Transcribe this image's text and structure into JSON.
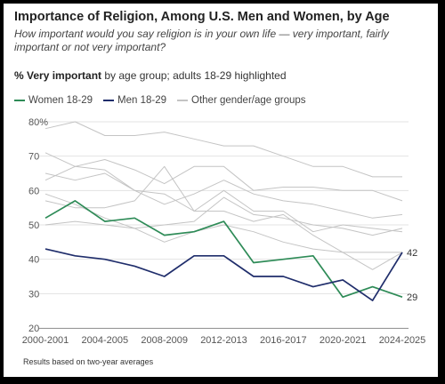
{
  "title": "Importance of Religion, Among U.S. Men and Women, by Age",
  "subtitle": "How important would you say religion is in your own life — very important, fairly important or not very important?",
  "measure": {
    "bold": "% Very important",
    "rest": " by age group; adults 18-29 highlighted"
  },
  "legend": [
    {
      "label": "Women 18-29",
      "color": "#2e8b57"
    },
    {
      "label": "Men 18-29",
      "color": "#1f2d6b"
    },
    {
      "label": "Other gender/age groups",
      "color": "#c4c4c4"
    }
  ],
  "footnote": "Results based on two-year averages",
  "chart_data": {
    "type": "line",
    "x": [
      "2000-2001",
      "2002-2003",
      "2004-2005",
      "2006-2007",
      "2008-2009",
      "2010-2011",
      "2012-2013",
      "2014-2015",
      "2016-2017",
      "2018-2019",
      "2020-2021",
      "2022-2023",
      "2024-2025"
    ],
    "xticks": [
      "2000-2001",
      "2004-2005",
      "2008-2009",
      "2012-2013",
      "2016-2017",
      "2020-2021",
      "2024-2025"
    ],
    "ylim": [
      20,
      80
    ],
    "yticks": [
      20,
      30,
      40,
      50,
      60,
      70,
      80
    ],
    "ytick_suffix_top": "%",
    "grid": true,
    "legend_position": "top-left",
    "series": [
      {
        "name": "Women 18-29",
        "color": "#2e8b57",
        "highlight": true,
        "values": [
          52,
          57,
          51,
          52,
          47,
          48,
          51,
          39,
          40,
          41,
          29,
          32,
          29
        ],
        "end_label": "29"
      },
      {
        "name": "Men 18-29",
        "color": "#1f2d6b",
        "highlight": true,
        "values": [
          43,
          41,
          40,
          38,
          35,
          41,
          41,
          35,
          35,
          32,
          34,
          28,
          42
        ],
        "end_label": "42"
      },
      {
        "color": "#c4c4c4",
        "values": [
          78,
          80,
          76,
          76,
          77,
          75,
          73,
          73,
          70,
          67,
          67,
          64,
          64
        ]
      },
      {
        "color": "#c4c4c4",
        "values": [
          71,
          67,
          69,
          66,
          62,
          67,
          67,
          60,
          61,
          61,
          60,
          60,
          57
        ]
      },
      {
        "color": "#c4c4c4",
        "values": [
          65,
          63,
          65,
          60,
          56,
          59,
          63,
          59,
          57,
          56,
          54,
          52,
          53
        ]
      },
      {
        "color": "#c4c4c4",
        "values": [
          63,
          67,
          66,
          60,
          59,
          54,
          60,
          54,
          54,
          48,
          50,
          49,
          48
        ]
      },
      {
        "color": "#c4c4c4",
        "values": [
          59,
          56,
          52,
          49,
          50,
          51,
          58,
          53,
          52,
          50,
          49,
          47,
          49
        ]
      },
      {
        "color": "#c4c4c4",
        "values": [
          50,
          51,
          50,
          49,
          45,
          48,
          50,
          48,
          45,
          43,
          42,
          37,
          42
        ]
      },
      {
        "color": "#c4c4c4",
        "values": [
          57,
          55,
          55,
          57,
          67,
          54,
          54,
          51,
          53,
          47,
          42,
          42,
          42
        ]
      }
    ]
  }
}
